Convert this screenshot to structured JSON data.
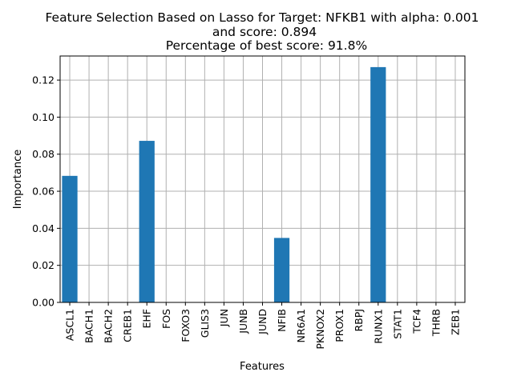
{
  "chart_data": {
    "type": "bar",
    "title_lines": [
      "Feature Selection Based on Lasso for Target: NFKB1 with alpha: 0.001",
      "and score: 0.894",
      " Percentage of best score: 91.8%"
    ],
    "xlabel": "Features",
    "ylabel": "Importance",
    "categories": [
      "ASCL1",
      "BACH1",
      "BACH2",
      "CREB1",
      "EHF",
      "FOS",
      "FOXO3",
      "GLIS3",
      "JUN",
      "JUNB",
      "JUND",
      "NFIB",
      "NR6A1",
      "PKNOX2",
      "PROX1",
      "RBPJ",
      "RUNX1",
      "STAT1",
      "TCF4",
      "THRB",
      "ZEB1"
    ],
    "values": [
      0.0683,
      0,
      0,
      0,
      0.0872,
      0,
      0,
      0,
      0,
      0,
      0,
      0.0348,
      0,
      0,
      0,
      0,
      0.127,
      0,
      0,
      0,
      0
    ],
    "ylim": [
      0,
      0.133
    ],
    "yticks": [
      0.0,
      0.02,
      0.04,
      0.06,
      0.08,
      0.1,
      0.12
    ],
    "ytick_labels": [
      "0.00",
      "0.02",
      "0.04",
      "0.06",
      "0.08",
      "0.10",
      "0.12"
    ],
    "grid": true,
    "bar_color": "#1f77b4",
    "grid_color": "#b0b0b0"
  }
}
